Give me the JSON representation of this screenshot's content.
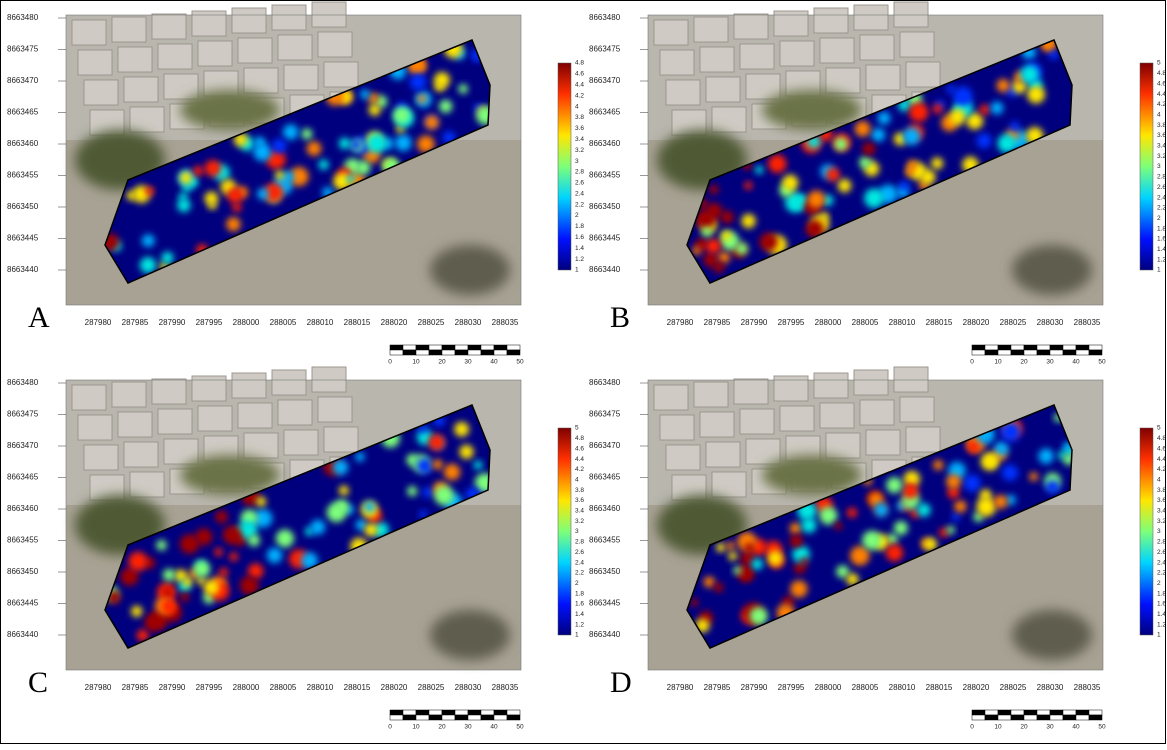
{
  "panels": [
    {
      "label": "A",
      "y_ticks": [
        8663480,
        8663475,
        8663470,
        8663465,
        8663460,
        8663455,
        8663450,
        8663445,
        8663440
      ],
      "x_ticks": [
        287980,
        287985,
        287990,
        287995,
        288000,
        288005,
        288010,
        288015,
        288020,
        288025,
        288030,
        288035
      ],
      "colorbar_ticks": [
        4.8,
        4.6,
        4.4,
        4.2,
        4,
        3.8,
        3.6,
        3.4,
        3.2,
        3,
        2.8,
        2.6,
        2.4,
        2.2,
        2,
        1.8,
        1.6,
        1.4,
        1.2,
        1
      ],
      "scale_ticks": [
        0,
        10,
        20,
        30,
        40,
        50
      ]
    },
    {
      "label": "B",
      "y_ticks": [
        8663480,
        8663475,
        8663470,
        8663465,
        8663460,
        8663455,
        8663450,
        8663445,
        8663440
      ],
      "x_ticks": [
        287980,
        287985,
        287990,
        287995,
        288000,
        288005,
        288010,
        288015,
        288020,
        288025,
        288030,
        288035
      ],
      "colorbar_ticks": [
        5,
        4.8,
        4.6,
        4.4,
        4.2,
        4,
        3.8,
        3.6,
        3.4,
        3.2,
        3,
        2.8,
        2.6,
        2.4,
        2.2,
        2,
        1.8,
        1.6,
        1.4,
        1.2,
        1
      ],
      "scale_ticks": [
        0,
        10,
        20,
        30,
        40,
        50
      ]
    },
    {
      "label": "C",
      "y_ticks": [
        8663480,
        8663475,
        8663470,
        8663465,
        8663460,
        8663455,
        8663450,
        8663445,
        8663440
      ],
      "x_ticks": [
        287980,
        287985,
        287990,
        287995,
        288000,
        288005,
        288010,
        288015,
        288020,
        288025,
        288030,
        288035
      ],
      "colorbar_ticks": [
        5,
        4.8,
        4.6,
        4.4,
        4.2,
        4,
        3.8,
        3.6,
        3.4,
        3.2,
        3,
        2.8,
        2.6,
        2.4,
        2.2,
        2,
        1.8,
        1.6,
        1.4,
        1.2,
        1
      ],
      "scale_ticks": [
        0,
        10,
        20,
        30,
        40,
        50
      ]
    },
    {
      "label": "D",
      "y_ticks": [
        8663480,
        8663475,
        8663470,
        8663465,
        8663460,
        8663455,
        8663450,
        8663445,
        8663440
      ],
      "x_ticks": [
        287980,
        287985,
        287990,
        287995,
        288000,
        288005,
        288010,
        288015,
        288020,
        288025,
        288030,
        288035
      ],
      "colorbar_ticks": [
        5,
        4.8,
        4.6,
        4.4,
        4.2,
        4,
        3.8,
        3.6,
        3.4,
        3.2,
        3,
        2.8,
        2.6,
        2.4,
        2.2,
        2,
        1.8,
        1.6,
        1.4,
        1.2,
        1
      ],
      "scale_ticks": [
        0,
        10,
        20,
        30,
        40,
        50
      ]
    }
  ]
}
